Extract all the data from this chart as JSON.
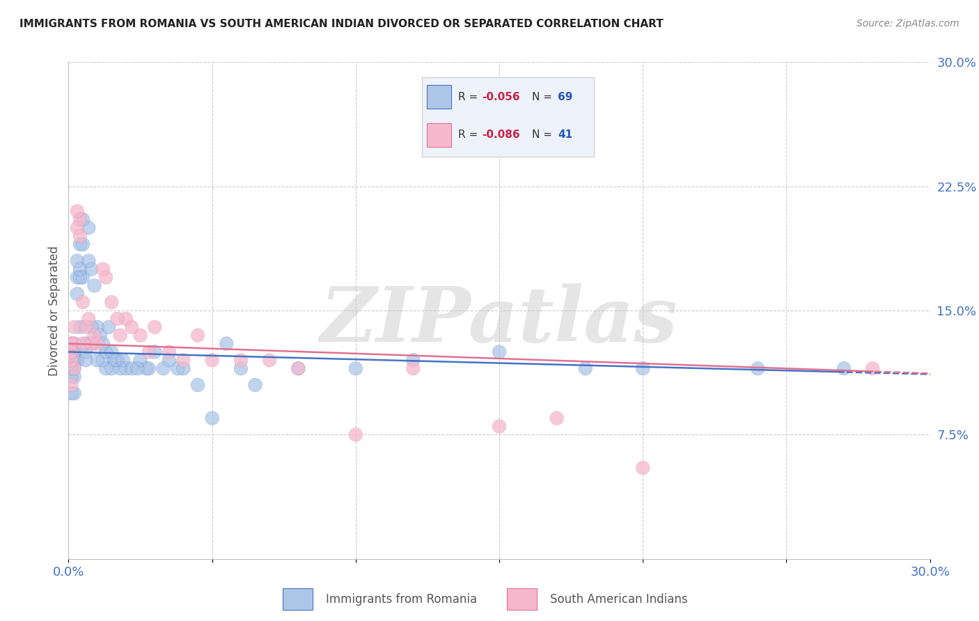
{
  "title": "IMMIGRANTS FROM ROMANIA VS SOUTH AMERICAN INDIAN DIVORCED OR SEPARATED CORRELATION CHART",
  "source": "Source: ZipAtlas.com",
  "ylabel": "Divorced or Separated",
  "xlim": [
    0.0,
    0.3
  ],
  "ylim": [
    0.0,
    0.3
  ],
  "ytick_right_labels": [
    "7.5%",
    "15.0%",
    "22.5%",
    "30.0%"
  ],
  "ytick_right_values": [
    0.075,
    0.15,
    0.225,
    0.3
  ],
  "grid_color": "#cccccc",
  "background_color": "#ffffff",
  "watermark": "ZIPatlas",
  "watermark_color": "#d8d8d8",
  "series": [
    {
      "name": "Immigrants from Romania",
      "R": -0.056,
      "N": 69,
      "color": "#adc6e8",
      "line_color": "#4472c4",
      "x": [
        0.001,
        0.001,
        0.001,
        0.001,
        0.001,
        0.002,
        0.002,
        0.002,
        0.002,
        0.002,
        0.002,
        0.003,
        0.003,
        0.003,
        0.003,
        0.004,
        0.004,
        0.004,
        0.004,
        0.005,
        0.005,
        0.005,
        0.006,
        0.006,
        0.006,
        0.007,
        0.007,
        0.008,
        0.008,
        0.009,
        0.009,
        0.01,
        0.01,
        0.011,
        0.012,
        0.012,
        0.013,
        0.013,
        0.014,
        0.015,
        0.015,
        0.016,
        0.017,
        0.018,
        0.019,
        0.02,
        0.022,
        0.024,
        0.025,
        0.027,
        0.028,
        0.03,
        0.033,
        0.035,
        0.038,
        0.04,
        0.045,
        0.05,
        0.055,
        0.06,
        0.065,
        0.08,
        0.1,
        0.12,
        0.15,
        0.18,
        0.2,
        0.24,
        0.27
      ],
      "y": [
        0.13,
        0.12,
        0.115,
        0.11,
        0.1,
        0.13,
        0.125,
        0.12,
        0.115,
        0.11,
        0.1,
        0.18,
        0.17,
        0.16,
        0.12,
        0.19,
        0.175,
        0.17,
        0.14,
        0.205,
        0.19,
        0.17,
        0.13,
        0.125,
        0.12,
        0.2,
        0.18,
        0.175,
        0.14,
        0.165,
        0.13,
        0.14,
        0.12,
        0.135,
        0.13,
        0.12,
        0.125,
        0.115,
        0.14,
        0.125,
        0.115,
        0.12,
        0.12,
        0.115,
        0.12,
        0.115,
        0.115,
        0.115,
        0.12,
        0.115,
        0.115,
        0.125,
        0.115,
        0.12,
        0.115,
        0.115,
        0.105,
        0.085,
        0.13,
        0.115,
        0.105,
        0.115,
        0.115,
        0.12,
        0.125,
        0.115,
        0.115,
        0.115,
        0.115
      ]
    },
    {
      "name": "South American Indians",
      "R": -0.086,
      "N": 41,
      "color": "#f5b8cc",
      "line_color": "#e07090",
      "x": [
        0.001,
        0.001,
        0.001,
        0.001,
        0.002,
        0.002,
        0.002,
        0.003,
        0.003,
        0.004,
        0.004,
        0.005,
        0.005,
        0.006,
        0.007,
        0.008,
        0.009,
        0.01,
        0.012,
        0.013,
        0.015,
        0.017,
        0.018,
        0.02,
        0.022,
        0.025,
        0.028,
        0.03,
        0.035,
        0.04,
        0.045,
        0.05,
        0.06,
        0.07,
        0.08,
        0.1,
        0.12,
        0.15,
        0.17,
        0.2,
        0.28
      ],
      "y": [
        0.13,
        0.125,
        0.12,
        0.105,
        0.14,
        0.13,
        0.115,
        0.21,
        0.2,
        0.205,
        0.195,
        0.155,
        0.13,
        0.14,
        0.145,
        0.13,
        0.135,
        0.13,
        0.175,
        0.17,
        0.155,
        0.145,
        0.135,
        0.145,
        0.14,
        0.135,
        0.125,
        0.14,
        0.125,
        0.12,
        0.135,
        0.12,
        0.12,
        0.12,
        0.115,
        0.075,
        0.115,
        0.08,
        0.085,
        0.055,
        0.115
      ]
    }
  ],
  "legend_R_color": "#cc2244",
  "legend_N_color": "#2255bb",
  "title_color": "#222222",
  "axis_label_color": "#4472c4",
  "right_axis_color": "#4472c4"
}
